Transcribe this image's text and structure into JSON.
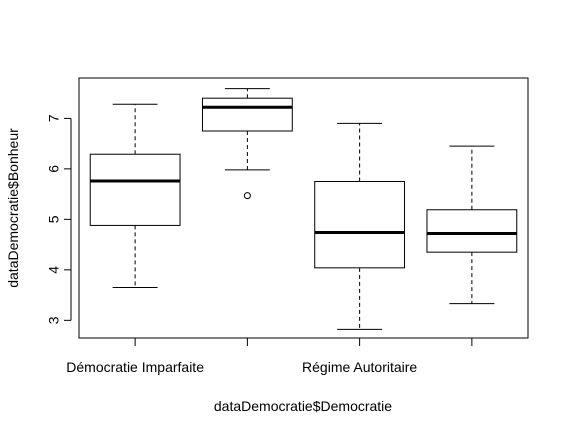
{
  "chart_data": {
    "type": "boxplot",
    "title": "",
    "xlabel": "dataDemocratie$Democratie",
    "ylabel": "dataDemocratie$Bonheur",
    "ylim": [
      2.65,
      7.8
    ],
    "yticks": [
      3,
      4,
      5,
      6,
      7
    ],
    "x_tick_labels": [
      "Démocratie Imparfaite",
      "",
      "Régime Autoritaire",
      ""
    ],
    "boxes": [
      {
        "whisker_low": 3.65,
        "q1": 4.88,
        "median": 5.76,
        "q3": 6.29,
        "whisker_high": 7.28,
        "outliers": []
      },
      {
        "whisker_low": 5.98,
        "q1": 6.75,
        "median": 7.22,
        "q3": 7.4,
        "whisker_high": 7.59,
        "outliers": [
          5.47
        ]
      },
      {
        "whisker_low": 2.82,
        "q1": 4.04,
        "median": 4.74,
        "q3": 5.75,
        "whisker_high": 6.9,
        "outliers": []
      },
      {
        "whisker_low": 3.33,
        "q1": 4.35,
        "median": 4.72,
        "q3": 5.19,
        "whisker_high": 6.45,
        "outliers": []
      }
    ],
    "grid": false,
    "colors": {
      "box_fill": "#ffffff",
      "stroke": "#000000"
    }
  }
}
